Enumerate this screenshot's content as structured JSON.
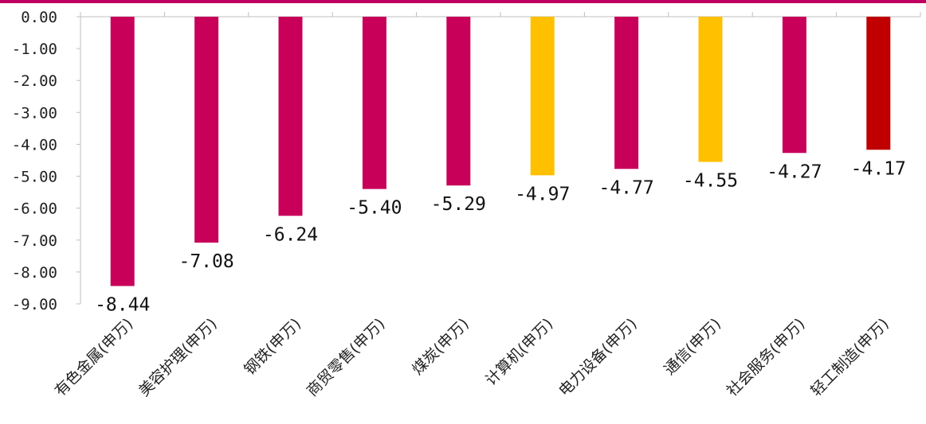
{
  "chart_data": {
    "type": "bar",
    "title": "",
    "xlabel": "",
    "ylabel": "",
    "ylim": [
      -9,
      0
    ],
    "yticks": [
      "0.00",
      "-1.00",
      "-2.00",
      "-3.00",
      "-4.00",
      "-5.00",
      "-6.00",
      "-7.00",
      "-8.00",
      "-9.00"
    ],
    "categories": [
      "有色金属(申万)",
      "美容护理(申万)",
      "钢铁(申万)",
      "商贸零售(申万)",
      "煤炭(申万)",
      "计算机(申万)",
      "电力设备(申万)",
      "通信(申万)",
      "社会服务(申万)",
      "轻工制造(申万)"
    ],
    "values": [
      -8.44,
      -7.08,
      -6.24,
      -5.4,
      -5.29,
      -4.97,
      -4.77,
      -4.55,
      -4.27,
      -4.17
    ],
    "value_labels": [
      "-8.44",
      "-7.08",
      "-6.24",
      "-5.40",
      "-5.29",
      "-4.97",
      "-4.77",
      "-4.55",
      "-4.27",
      "-4.17"
    ],
    "bar_colors": [
      "#c8005a",
      "#c8005a",
      "#c8005a",
      "#c8005a",
      "#c8005a",
      "#ffc000",
      "#c8005a",
      "#ffc000",
      "#c8005a",
      "#c00000"
    ],
    "grid": false,
    "legend": "none"
  },
  "colors": {
    "accent_line": "#c00060",
    "axis": "#bfbfbf"
  }
}
